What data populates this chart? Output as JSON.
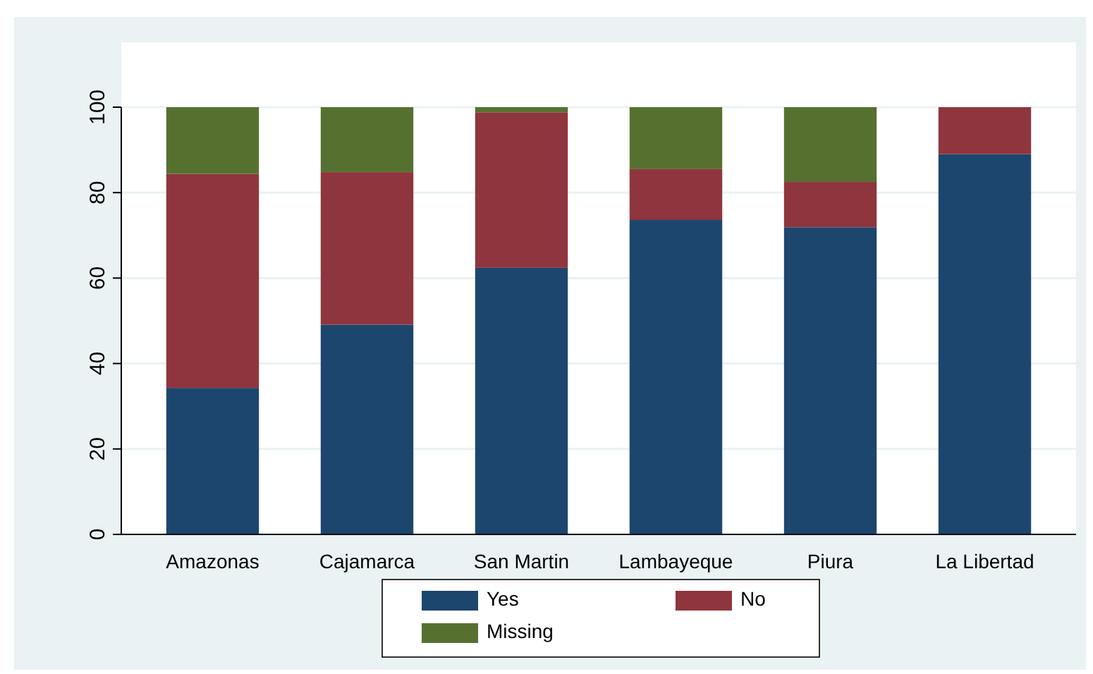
{
  "chart_data": {
    "type": "bar",
    "stacked": true,
    "categories": [
      "Amazonas",
      "Cajamarca",
      "San Martin",
      "Lambayeque",
      "Piura",
      "La Libertad"
    ],
    "series": [
      {
        "name": "Yes",
        "color": "#1c466e",
        "values": [
          34.3,
          49.1,
          62.4,
          73.6,
          71.9,
          89.0
        ]
      },
      {
        "name": "No",
        "color": "#8f353d",
        "values": [
          50.1,
          35.7,
          36.4,
          11.9,
          10.6,
          11.0
        ]
      },
      {
        "name": "Missing",
        "color": "#56712f",
        "values": [
          15.6,
          15.2,
          1.2,
          14.5,
          17.5,
          0
        ]
      }
    ],
    "ylim": [
      0,
      100
    ],
    "yticks": [
      0,
      20,
      40,
      60,
      80,
      100
    ],
    "grid": "y",
    "legend": "bottom"
  }
}
